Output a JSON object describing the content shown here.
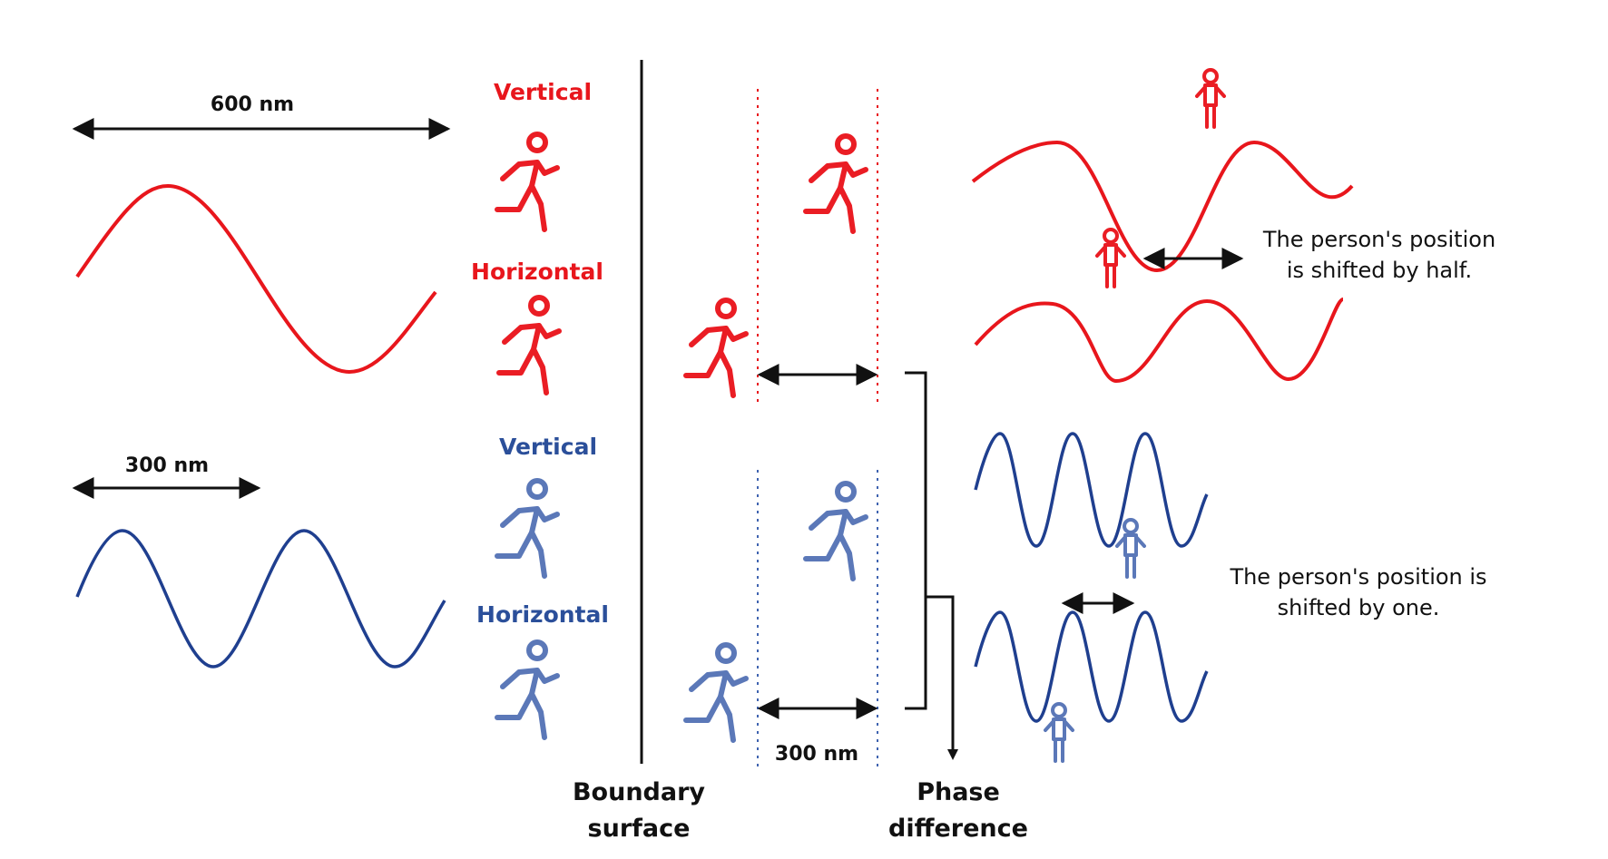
{
  "colors": {
    "red": "#e8161c",
    "blue": "#1f3f8f",
    "black": "#111111",
    "red_figure": "#ea1d24",
    "blue_figure": "#5b78b8"
  },
  "icons": {
    "runner": "running-person-icon",
    "standing": "standing-person-icon"
  },
  "wavelengths": {
    "long": {
      "label": "600 nm"
    },
    "short": {
      "label": "300 nm"
    }
  },
  "labels": {
    "red_vertical": "Vertical",
    "red_horizontal": "Horizontal",
    "blue_vertical": "Vertical",
    "blue_horizontal": "Horizontal",
    "gap": "300 nm",
    "boundary_line1": "Boundary",
    "boundary_line2": "surface",
    "phase_line1": "Phase",
    "phase_line2": "difference",
    "note_half_line1": "The person's position",
    "note_half_line2": "is shifted by half.",
    "note_one_line1": "The person's position is",
    "note_one_line2": "shifted by one."
  }
}
